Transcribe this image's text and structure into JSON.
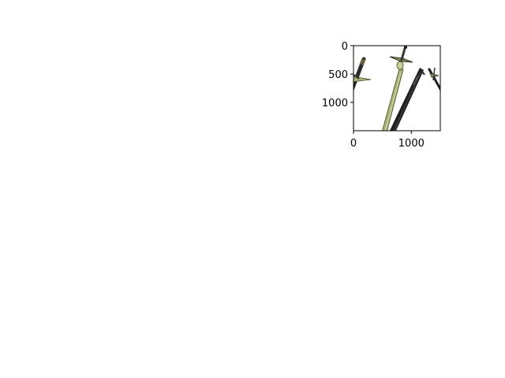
{
  "chart_data": {
    "type": "image",
    "title": "",
    "xlabel": "",
    "ylabel": "",
    "xlim": [
      0,
      1500
    ],
    "ylim": [
      1500,
      0
    ],
    "x_ticks": [
      {
        "value": 0,
        "label": "0"
      },
      {
        "value": 1000,
        "label": "1000"
      }
    ],
    "y_ticks": [
      {
        "value": 0,
        "label": "0"
      },
      {
        "value": 500,
        "label": "500"
      },
      {
        "value": 1000,
        "label": "1000"
      }
    ],
    "grid": false,
    "legend": "none",
    "image_content": [
      "crossed-swords-image"
    ],
    "colors": {
      "axes": "#000000",
      "background": "#ffffff",
      "blade_green": "#a9b47a",
      "blade_green_edge": "#5b6235",
      "blade_black": "#1e1e1e",
      "guard_dark": "#3a3a2a",
      "hilt_gold": "#7a6a3a"
    }
  }
}
